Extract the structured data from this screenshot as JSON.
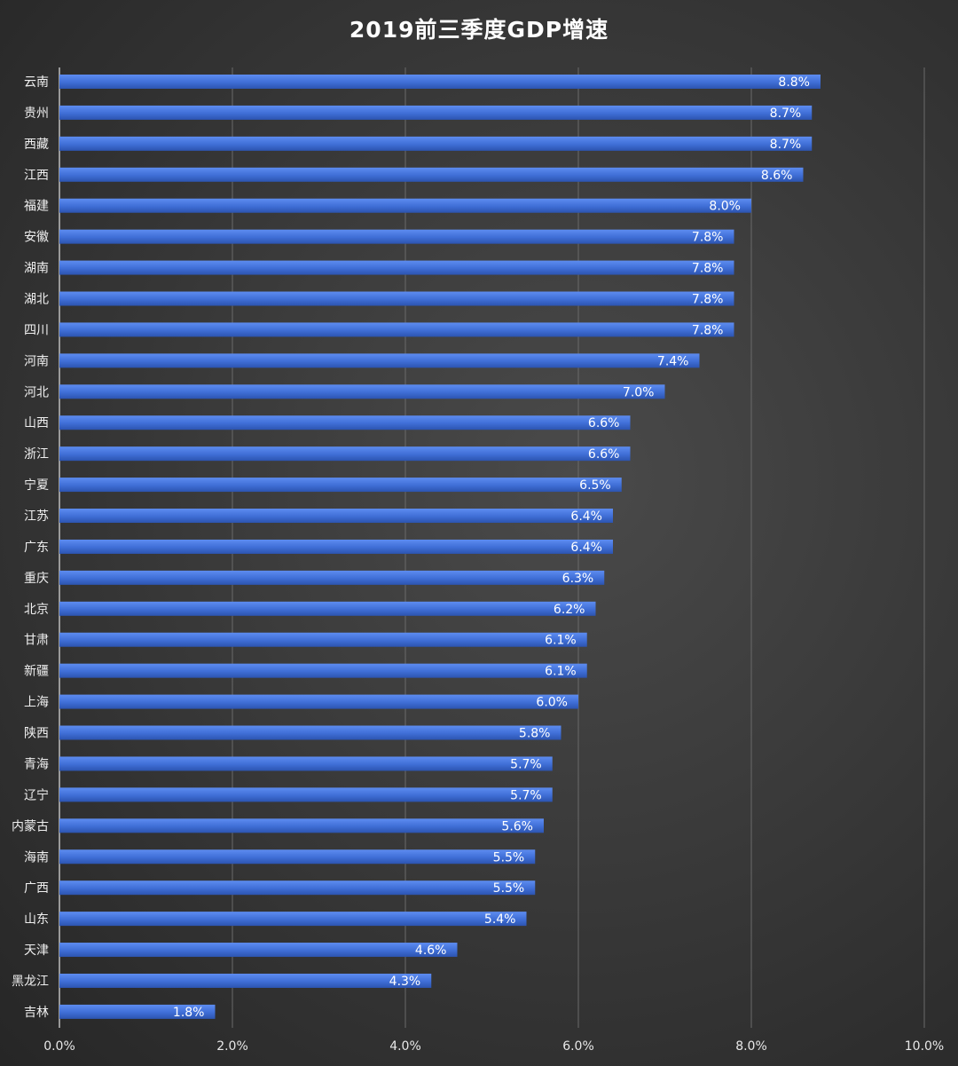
{
  "chart_data": {
    "type": "bar",
    "orientation": "horizontal",
    "title": "2019前三季度GDP增速",
    "categories": [
      "云南",
      "贵州",
      "西藏",
      "江西",
      "福建",
      "安徽",
      "湖南",
      "湖北",
      "四川",
      "河南",
      "河北",
      "山西",
      "浙江",
      "宁夏",
      "江苏",
      "广东",
      "重庆",
      "北京",
      "甘肃",
      "新疆",
      "上海",
      "陕西",
      "青海",
      "辽宁",
      "内蒙古",
      "海南",
      "广西",
      "山东",
      "天津",
      "黑龙江",
      "吉林"
    ],
    "values": [
      8.8,
      8.7,
      8.7,
      8.6,
      8.0,
      7.8,
      7.8,
      7.8,
      7.8,
      7.4,
      7.0,
      6.6,
      6.6,
      6.5,
      6.4,
      6.4,
      6.3,
      6.2,
      6.1,
      6.1,
      6.0,
      5.8,
      5.7,
      5.7,
      5.6,
      5.5,
      5.5,
      5.4,
      4.6,
      4.3,
      1.8
    ],
    "data_labels": [
      "8.8%",
      "8.7%",
      "8.7%",
      "8.6%",
      "8.0%",
      "7.8%",
      "7.8%",
      "7.8%",
      "7.8%",
      "7.4%",
      "7.0%",
      "6.6%",
      "6.6%",
      "6.5%",
      "6.4%",
      "6.4%",
      "6.3%",
      "6.2%",
      "6.1%",
      "6.1%",
      "6.0%",
      "5.8%",
      "5.7%",
      "5.7%",
      "5.6%",
      "5.5%",
      "5.5%",
      "5.4%",
      "4.6%",
      "4.3%",
      "1.8%"
    ],
    "xlim": [
      0,
      10
    ],
    "x_ticks": [
      0,
      2,
      4,
      6,
      8,
      10
    ],
    "x_tick_labels": [
      "0.0%",
      "2.0%",
      "4.0%",
      "6.0%",
      "8.0%",
      "10.0%"
    ],
    "xlabel": "",
    "ylabel": "",
    "grid": "vertical",
    "legend": "none",
    "colors": {
      "bar": "#3f6ed6",
      "bar_light": "#5d8cf0",
      "bar_dark": "#2c54b0",
      "grid": "#6a6a6a",
      "text": "#ffffff"
    }
  }
}
